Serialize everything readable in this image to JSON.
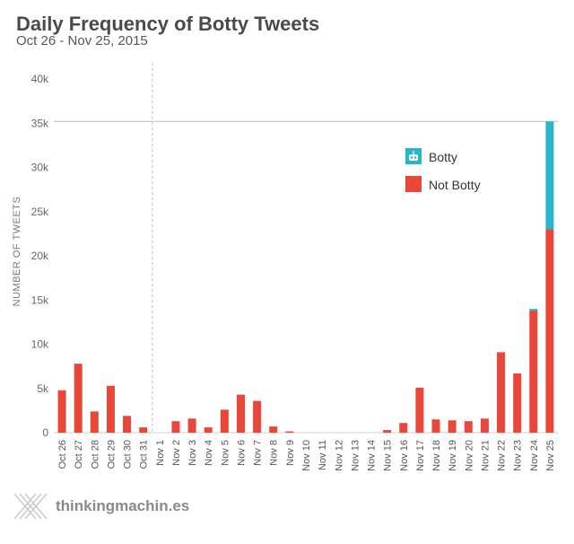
{
  "header": {
    "title": "Daily Frequency of Botty Tweets",
    "subtitle": "Oct 26 - Nov 25, 2015"
  },
  "brand": {
    "name": "thinkingmachin.es",
    "logo_icon": "crossed-lines-logo-icon"
  },
  "chart_data": {
    "type": "bar",
    "stacked": true,
    "title": "Daily Frequency of Botty Tweets",
    "subtitle": "Oct 26 - Nov 25, 2015",
    "xlabel": "",
    "ylabel": "NUMBER OF TWEETS",
    "ylim": [
      0,
      40000
    ],
    "yticks": [
      "0",
      "5k",
      "10k",
      "15k",
      "20k",
      "25k",
      "30k",
      "35k",
      "40k"
    ],
    "grid": false,
    "legend_position": "top-right",
    "categories": [
      "Oct 26",
      "Oct 27",
      "Oct 28",
      "Oct 29",
      "Oct 30",
      "Oct 31",
      "Nov 1",
      "Nov 2",
      "Nov 3",
      "Nov 4",
      "Nov 5",
      "Nov 6",
      "Nov 7",
      "Nov 8",
      "Nov 9",
      "Nov 10",
      "Nov 11",
      "Nov 12",
      "Nov 13",
      "Nov 14",
      "Nov 15",
      "Nov 16",
      "Nov 17",
      "Nov 18",
      "Nov 19",
      "Nov 20",
      "Nov 21",
      "Nov 22",
      "Nov 23",
      "Nov 24",
      "Nov 25"
    ],
    "series": [
      {
        "name": "Not Botty",
        "color": "#e8473a",
        "values": [
          4800,
          7800,
          2400,
          5300,
          1900,
          600,
          0,
          1300,
          1600,
          600,
          2600,
          4300,
          3600,
          700,
          150,
          0,
          0,
          0,
          0,
          0,
          300,
          1100,
          5100,
          1500,
          1400,
          1300,
          1600,
          9100,
          6700,
          13800,
          23000
        ]
      },
      {
        "name": "Botty",
        "color": "#29b5cc",
        "icon": "robot-face-icon",
        "values": [
          0,
          0,
          0,
          0,
          0,
          0,
          0,
          0,
          0,
          0,
          0,
          0,
          0,
          0,
          0,
          0,
          0,
          0,
          0,
          0,
          0,
          0,
          0,
          0,
          0,
          0,
          0,
          0,
          0,
          200,
          12200
        ]
      }
    ],
    "annotations": [
      {
        "type": "vertical-dashed-line",
        "after_category": "Oct 31"
      },
      {
        "type": "horizontal-reference-line",
        "y": 35200
      }
    ]
  }
}
